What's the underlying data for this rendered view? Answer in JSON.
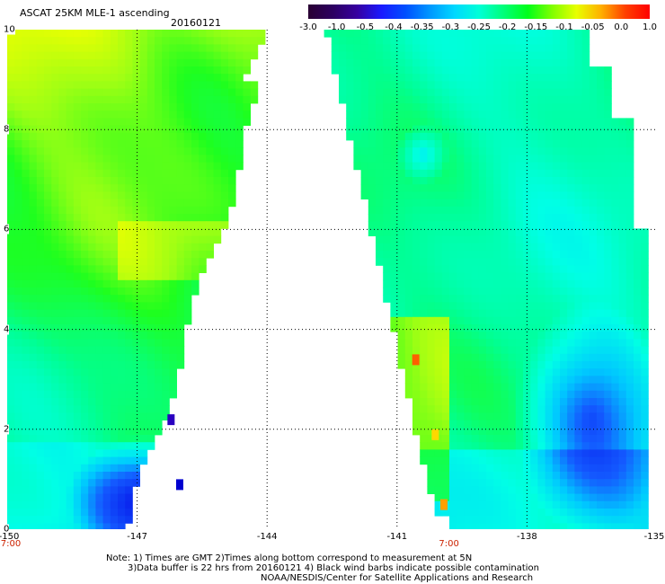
{
  "header": {
    "title": "ASCAT 25KM MLE-1 ascending",
    "date": "20160121"
  },
  "colorbar": {
    "labels": [
      "-3.0",
      "-1.0",
      "-0.5",
      "-0.4",
      "-0.35",
      "-0.3",
      "-0.25",
      "-0.2",
      "-0.15",
      "-0.1",
      "-0.05",
      "0.0",
      "1.0"
    ],
    "colors": [
      "#2a0033",
      "#2c0060",
      "#3600a0",
      "#1a1aff",
      "#0050ff",
      "#0098ff",
      "#00d8ff",
      "#00ffd8",
      "#00ff7a",
      "#00ff1a",
      "#80ff00",
      "#e8ff00",
      "#ffb000",
      "#ff4000",
      "#ff0000"
    ]
  },
  "map": {
    "lon_range": [
      -150,
      -135
    ],
    "lat_range": [
      0,
      10
    ],
    "x_ticks": [
      "-150",
      "-147",
      "-144",
      "-141",
      "-138",
      "-135"
    ],
    "y_ticks": [
      "0",
      "2",
      "4",
      "6",
      "8",
      "10"
    ],
    "grid": true,
    "time_labels": [
      {
        "lon": -150,
        "label": "7:00"
      },
      {
        "lon": -139.8,
        "label": "7:00"
      }
    ]
  },
  "notes": {
    "line1": "Note: 1) Times are GMT 2)Times along bottom correspond to measurement at 5N",
    "line2": "3)Data buffer is 22 hrs from 20160121 4) Black wind barbs indicate possible contamination",
    "credit": "NOAA/NESDIS/Center for Satellite Applications and Research"
  }
}
